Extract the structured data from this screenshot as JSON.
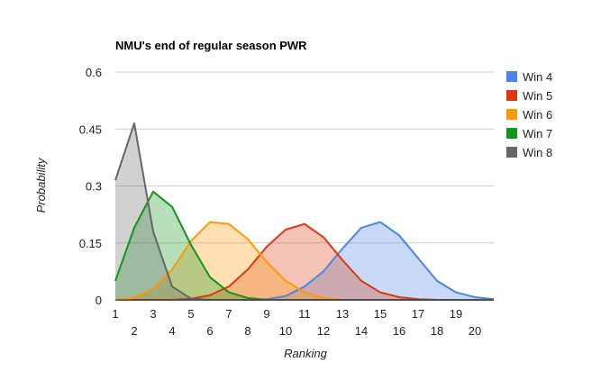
{
  "chart_data": {
    "type": "area",
    "title": "NMU's end of regular season PWR",
    "xlabel": "Ranking",
    "ylabel": "Probability",
    "xlim": [
      1,
      21
    ],
    "ylim": [
      0,
      0.6
    ],
    "x": [
      1,
      2,
      3,
      4,
      5,
      6,
      7,
      8,
      9,
      10,
      11,
      12,
      13,
      14,
      15,
      16,
      17,
      18,
      19,
      20,
      21
    ],
    "x_ticks_upper": [
      "1",
      "3",
      "5",
      "7",
      "9",
      "11",
      "13",
      "15",
      "17",
      "19"
    ],
    "x_ticks_lower": [
      "2",
      "4",
      "6",
      "8",
      "10",
      "12",
      "14",
      "16",
      "18",
      "20"
    ],
    "y_ticks": [
      {
        "value": 0,
        "label": "0"
      },
      {
        "value": 0.15,
        "label": "0.15"
      },
      {
        "value": 0.3,
        "label": "0.3"
      },
      {
        "value": 0.45,
        "label": "0.45"
      },
      {
        "value": 0.6,
        "label": "0.6"
      }
    ],
    "grid": true,
    "legend_position": "right",
    "series": [
      {
        "name": "Win 4",
        "color": "#4a86e8",
        "values": [
          0,
          0,
          0,
          0,
          0,
          0,
          0,
          0,
          0.002,
          0.01,
          0.035,
          0.075,
          0.135,
          0.19,
          0.205,
          0.17,
          0.11,
          0.05,
          0.02,
          0.007,
          0.002
        ]
      },
      {
        "name": "Win 5",
        "color": "#dc3912",
        "values": [
          0,
          0,
          0,
          0,
          0.003,
          0.012,
          0.035,
          0.08,
          0.14,
          0.185,
          0.2,
          0.165,
          0.105,
          0.05,
          0.02,
          0.007,
          0.002,
          0,
          0,
          0,
          0
        ]
      },
      {
        "name": "Win 6",
        "color": "#ff9900",
        "values": [
          0,
          0.005,
          0.03,
          0.08,
          0.155,
          0.205,
          0.2,
          0.16,
          0.1,
          0.05,
          0.02,
          0.005,
          0,
          0,
          0,
          0,
          0,
          0,
          0,
          0,
          0
        ]
      },
      {
        "name": "Win 7",
        "color": "#109618",
        "values": [
          0.05,
          0.19,
          0.285,
          0.245,
          0.145,
          0.06,
          0.02,
          0.005,
          0,
          0,
          0,
          0,
          0,
          0,
          0,
          0,
          0,
          0,
          0,
          0,
          0
        ]
      },
      {
        "name": "Win 8",
        "color": "#666666",
        "values": [
          0.315,
          0.465,
          0.18,
          0.035,
          0.003,
          0,
          0,
          0,
          0,
          0,
          0,
          0,
          0,
          0,
          0,
          0,
          0,
          0,
          0,
          0,
          0
        ]
      }
    ]
  }
}
